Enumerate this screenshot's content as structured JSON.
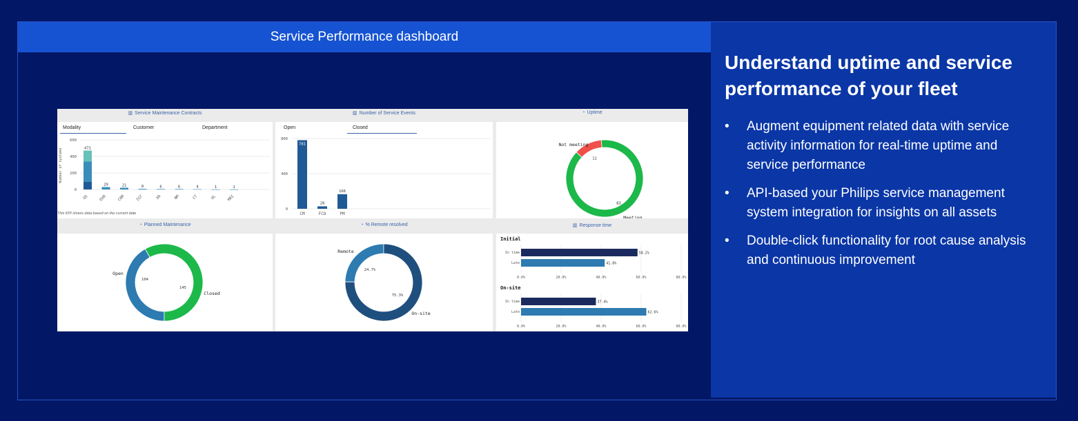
{
  "title": "Service Performance dashboard",
  "right": {
    "heading": "Understand uptime and service performance of your fleet",
    "bullets": [
      "Augment equipment related data with service activity information for real-time uptime and service performance",
      "API-based your Philips service management system integration for insights on all assets",
      "Double-click functionality for root cause analysis and continuous improvement"
    ]
  },
  "dashboard": {
    "contracts": {
      "title": "Service Maintenance Contracts",
      "tabs": [
        "Modality",
        "Customer",
        "Department"
      ],
      "ylabel": "Number of systems",
      "note": "This KPI shows data based on the current date"
    },
    "events": {
      "title": "Number of Service Events",
      "tabs": [
        "Open",
        "Closed"
      ]
    },
    "uptime": {
      "title": "Uptime",
      "labels": {
        "not_meeting": "Not meeting",
        "meeting": "Meeting"
      }
    },
    "planned": {
      "title": "Planned Maintenance",
      "labels": {
        "open": "Open",
        "closed": "Closed"
      }
    },
    "remote": {
      "title": "% Remote resolved",
      "labels": {
        "remote": "Remote",
        "onsite": "On-site"
      }
    },
    "response": {
      "title": "Response time",
      "sections": [
        "Initial",
        "On-site"
      ]
    }
  },
  "chart_data": [
    {
      "id": "contracts",
      "type": "bar",
      "title": "Service Maintenance Contracts",
      "categories": [
        "US",
        "DXR",
        "CRM",
        "IGT",
        "XR",
        "NM",
        "CT",
        "UL",
        "MRI"
      ],
      "values": [
        471,
        29,
        21,
        8,
        6,
        6,
        4,
        1,
        1
      ],
      "ylabel": "Number of systems",
      "ylim": [
        0,
        600
      ],
      "yticks": [
        0,
        200,
        400,
        600
      ],
      "colors": [
        "#67c1b8",
        "#3a8dba",
        "#1f5a96"
      ]
    },
    {
      "id": "events",
      "type": "bar",
      "title": "Number of Service Events",
      "categories": [
        "CM",
        "FCO",
        "PM"
      ],
      "values": [
        781,
        28,
        166
      ],
      "ylim": [
        0,
        800
      ],
      "yticks": [
        0,
        400,
        800
      ],
      "color": "#1f5a96"
    },
    {
      "id": "uptime",
      "type": "pie",
      "title": "Uptime",
      "labels": [
        "Not meeting",
        "Meeting"
      ],
      "values": [
        11,
        83
      ],
      "colors": [
        "#f0504a",
        "#1cb84a"
      ]
    },
    {
      "id": "planned",
      "type": "pie",
      "title": "Planned Maintenance",
      "labels": [
        "Open",
        "Closed"
      ],
      "values": [
        104,
        145
      ],
      "colors": [
        "#2d7bb0",
        "#1cb84a"
      ]
    },
    {
      "id": "remote",
      "type": "pie",
      "title": "% Remote resolved",
      "labels": [
        "Remote",
        "On-site"
      ],
      "values": [
        24.7,
        75.3
      ],
      "value_labels": [
        "24.7%",
        "75.3%"
      ],
      "colors": [
        "#2d7bb0",
        "#1f4f7e"
      ]
    },
    {
      "id": "response_initial",
      "type": "bar",
      "title": "Initial",
      "categories": [
        "In time",
        "Late"
      ],
      "values": [
        58.2,
        41.8
      ],
      "value_labels": [
        "58.2%",
        "41.8%"
      ],
      "xticks": [
        "0.0%",
        "20.0%",
        "40.0%",
        "60.0%",
        "80.0%"
      ],
      "xlim": [
        0,
        80
      ],
      "colors": [
        "#1b2a5e",
        "#2d7bb0"
      ]
    },
    {
      "id": "response_onsite",
      "type": "bar",
      "title": "On-site",
      "categories": [
        "In time",
        "Late"
      ],
      "values": [
        37.4,
        62.6
      ],
      "value_labels": [
        "37.4%",
        "62.6%"
      ],
      "xticks": [
        "0.0%",
        "20.0%",
        "40.0%",
        "60.0%",
        "80.0%"
      ],
      "xlim": [
        0,
        80
      ],
      "colors": [
        "#1b2a5e",
        "#2d7bb0"
      ]
    }
  ]
}
